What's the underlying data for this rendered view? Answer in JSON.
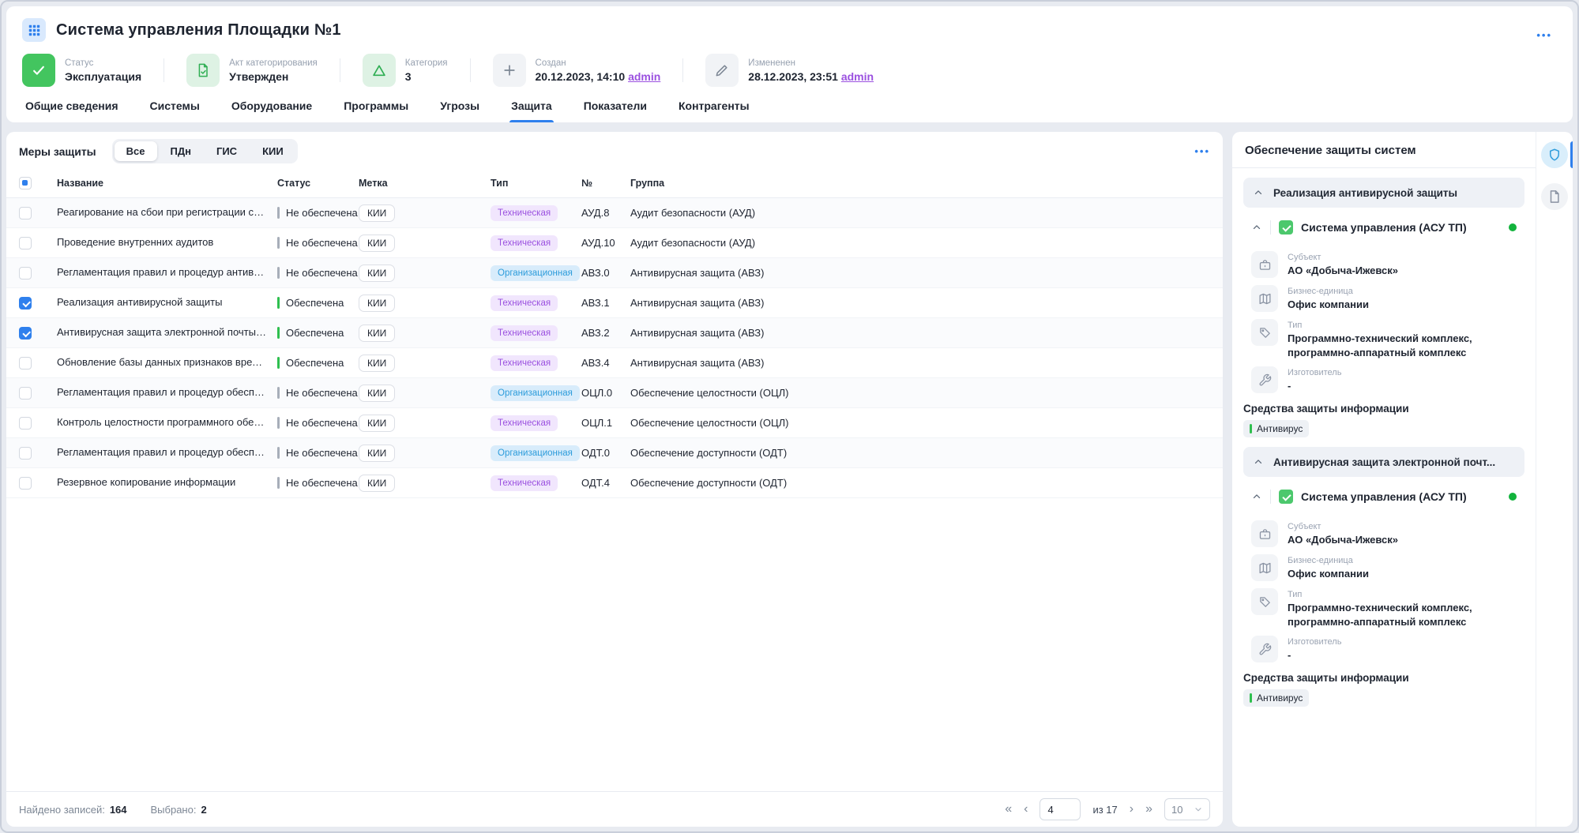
{
  "colors": {
    "accent": "#2f80ed",
    "success_green": "#2fbf4f",
    "status_gray": "#a7aeb9",
    "link_purple": "#9b51e0",
    "badge_tech_purple": "#9b51e0",
    "badge_org_blue": "#2d9cdb"
  },
  "header": {
    "title": "Система управления Площадки №1",
    "menu_ellipsis": "•••",
    "chips": [
      {
        "icon": "check-icon",
        "style": "green-solid",
        "label": "Статус",
        "value": "Эксплуатация"
      },
      {
        "icon": "doc-check-icon",
        "style": "green-light",
        "label": "Акт категорирования",
        "value": "Утвержден"
      },
      {
        "icon": "triangle-icon",
        "style": "green-light",
        "label": "Категория",
        "value": "3"
      },
      {
        "icon": "plus-icon",
        "style": "gray",
        "label": "Создан",
        "value": "20.12.2023, 14:10",
        "link": "admin"
      },
      {
        "icon": "pencil-icon",
        "style": "gray",
        "label": "Измененен",
        "value": "28.12.2023, 23:51",
        "link": "admin"
      }
    ],
    "tabs": [
      {
        "label": "Общие сведения",
        "active": false
      },
      {
        "label": "Системы",
        "active": false
      },
      {
        "label": "Оборудование",
        "active": false
      },
      {
        "label": "Программы",
        "active": false
      },
      {
        "label": "Угрозы",
        "active": false
      },
      {
        "label": "Защита",
        "active": true
      },
      {
        "label": "Показатели",
        "active": false
      },
      {
        "label": "Контрагенты",
        "active": false
      }
    ]
  },
  "measures": {
    "title": "Меры защиты",
    "filters": [
      "Все",
      "ПДн",
      "ГИС",
      "КИИ"
    ],
    "active_filter": "Все",
    "menu_ellipsis": "•••",
    "select_all_state": "indeterminate",
    "columns": [
      "Название",
      "Статус",
      "Метка",
      "Тип",
      "№",
      "Группа"
    ],
    "rows": [
      {
        "checked": false,
        "name": "Реагирование на сбои при регистрации событий б...",
        "status": "Не обеспечена",
        "status_kind": "none",
        "label": "КИИ",
        "type": "Техническая",
        "type_kind": "tech",
        "num": "АУД.8",
        "group": "Аудит безопасности (АУД)"
      },
      {
        "checked": false,
        "name": "Проведение внутренних аудитов",
        "status": "Не обеспечена",
        "status_kind": "none",
        "label": "КИИ",
        "type": "Техническая",
        "type_kind": "tech",
        "num": "АУД.10",
        "group": "Аудит безопасности (АУД)"
      },
      {
        "checked": false,
        "name": "Регламентация правил и процедур антивирусной ...",
        "status": "Не обеспечена",
        "status_kind": "none",
        "label": "КИИ",
        "type": "Организационная",
        "type_kind": "org",
        "num": "АВЗ.0",
        "group": "Антивирусная защита (АВЗ)"
      },
      {
        "checked": true,
        "name": "Реализация антивирусной защиты",
        "status": "Обеспечена",
        "status_kind": "ok",
        "label": "КИИ",
        "type": "Техническая",
        "type_kind": "tech",
        "num": "АВЗ.1",
        "group": "Антивирусная защита (АВЗ)"
      },
      {
        "checked": true,
        "name": "Антивирусная защита электронной почты и иных ...",
        "status": "Обеспечена",
        "status_kind": "ok",
        "label": "КИИ",
        "type": "Техническая",
        "type_kind": "tech",
        "num": "АВЗ.2",
        "group": "Антивирусная защита (АВЗ)"
      },
      {
        "checked": false,
        "name": "Обновление базы данных признаков вредоносны...",
        "status": "Обеспечена",
        "status_kind": "ok",
        "label": "КИИ",
        "type": "Техническая",
        "type_kind": "tech",
        "num": "АВЗ.4",
        "group": "Антивирусная защита (АВЗ)"
      },
      {
        "checked": false,
        "name": "Регламентация правил и процедур обеспечения ц...",
        "status": "Не обеспечена",
        "status_kind": "none",
        "label": "КИИ",
        "type": "Организационная",
        "type_kind": "org",
        "num": "ОЦЛ.0",
        "group": "Обеспечение целостности (ОЦЛ)"
      },
      {
        "checked": false,
        "name": "Контроль целостности программного обеспечения",
        "status": "Не обеспечена",
        "status_kind": "none",
        "label": "КИИ",
        "type": "Техническая",
        "type_kind": "tech",
        "num": "ОЦЛ.1",
        "group": "Обеспечение целостности (ОЦЛ)"
      },
      {
        "checked": false,
        "name": "Регламентация правил и процедур обеспечения д...",
        "status": "Не обеспечена",
        "status_kind": "none",
        "label": "КИИ",
        "type": "Организационная",
        "type_kind": "org",
        "num": "ОДТ.0",
        "group": "Обеспечение доступности (ОДТ)"
      },
      {
        "checked": false,
        "name": "Резервное копирование информации",
        "status": "Не обеспечена",
        "status_kind": "none",
        "label": "КИИ",
        "type": "Техническая",
        "type_kind": "tech",
        "num": "ОДТ.4",
        "group": "Обеспечение доступности (ОДТ)"
      }
    ]
  },
  "footer": {
    "found_label": "Найдено записей:",
    "found_value": "164",
    "selected_label": "Выбрано:",
    "selected_value": "2",
    "pagination": {
      "first": "«",
      "prev": "‹",
      "page": "4",
      "of_label": "из 17",
      "next": "›",
      "last": "»",
      "page_size": "10"
    }
  },
  "side_panel": {
    "title": "Обеспечение защиты систем",
    "sections": [
      {
        "header": "Реализация антивирусной защиты",
        "card": {
          "title": "Система управления (АСУ ТП)",
          "checked": true,
          "status_dot": "green",
          "fields": [
            {
              "icon": "briefcase-icon",
              "label": "Субъект",
              "value": "АО «Добыча-Ижевск»"
            },
            {
              "icon": "map-icon",
              "label": "Бизнес-единица",
              "value": "Офис компании"
            },
            {
              "icon": "tag-icon",
              "label": "Тип",
              "value": "Программно-технический комплекс, программно-аппаратный комплекс"
            },
            {
              "icon": "wrench-icon",
              "label": "Изготовитель",
              "value": "-"
            }
          ],
          "tools_title": "Средства защиты информации",
          "tools": [
            "Антивирус"
          ]
        }
      },
      {
        "header": "Антивирусная защита электронной почт...",
        "card": {
          "title": "Система управления (АСУ ТП)",
          "checked": true,
          "status_dot": "green",
          "fields": [
            {
              "icon": "briefcase-icon",
              "label": "Субъект",
              "value": "АО «Добыча-Ижевск»"
            },
            {
              "icon": "map-icon",
              "label": "Бизнес-единица",
              "value": "Офис компании"
            },
            {
              "icon": "tag-icon",
              "label": "Тип",
              "value": "Программно-технический комплекс, программно-аппаратный комплекс"
            },
            {
              "icon": "wrench-icon",
              "label": "Изготовитель",
              "value": "-"
            }
          ],
          "tools_title": "Средства защиты информации",
          "tools": [
            "Антивирус"
          ]
        }
      }
    ]
  },
  "rail": {
    "items": [
      {
        "icon": "shield-icon",
        "active": true
      },
      {
        "icon": "document-icon",
        "active": false
      }
    ]
  }
}
